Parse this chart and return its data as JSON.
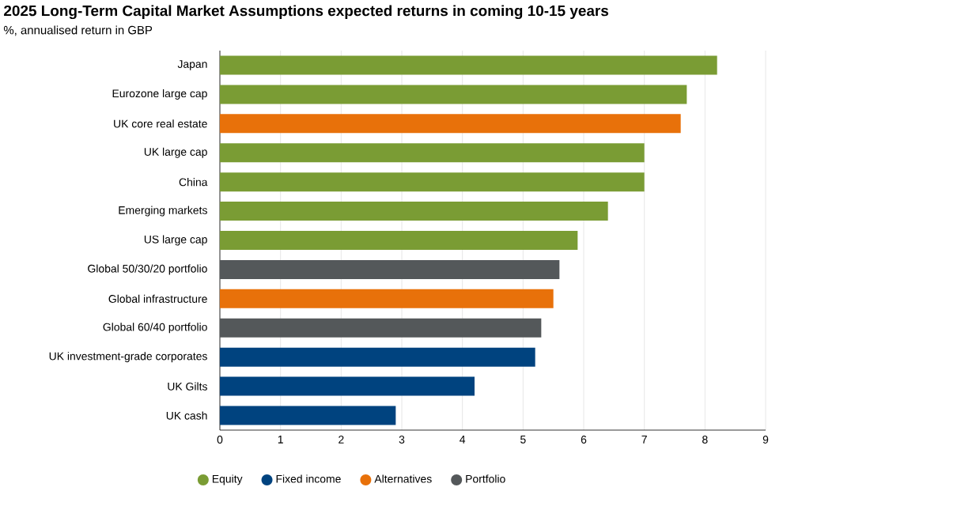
{
  "chart_data": {
    "type": "bar",
    "orientation": "horizontal",
    "title": "2025 Long-Term Capital Market Assumptions expected returns in coming 10-15 years",
    "subtitle": "%, annualised return in GBP",
    "categories": [
      "Japan",
      "Eurozone large cap",
      "UK core real estate",
      "UK large cap",
      "China",
      "Emerging markets",
      "US large cap",
      "Global 50/30/20 portfolio",
      "Global infrastructure",
      "Global 60/40 portfolio",
      "UK investment-grade corporates",
      "UK Gilts",
      "UK cash"
    ],
    "series": [
      {
        "name": "Equity",
        "color": "#7a9c34",
        "values": [
          8.2,
          7.7,
          null,
          7.0,
          7.0,
          6.4,
          5.9,
          null,
          null,
          null,
          null,
          null,
          null
        ]
      },
      {
        "name": "Fixed income",
        "color": "#00437f",
        "values": [
          null,
          null,
          null,
          null,
          null,
          null,
          null,
          null,
          null,
          null,
          5.2,
          4.2,
          2.9
        ]
      },
      {
        "name": "Alternatives",
        "color": "#e8710a",
        "values": [
          null,
          null,
          7.6,
          null,
          null,
          null,
          null,
          null,
          5.5,
          null,
          null,
          null,
          null
        ]
      },
      {
        "name": "Portfolio",
        "color": "#54585a",
        "values": [
          null,
          null,
          null,
          null,
          null,
          null,
          null,
          5.6,
          null,
          5.3,
          null,
          null,
          null
        ]
      }
    ],
    "xlim": [
      0,
      9
    ],
    "xticks": [
      0,
      1,
      2,
      3,
      4,
      5,
      6,
      7,
      8,
      9
    ],
    "grid": "x",
    "legend": "bottom"
  }
}
